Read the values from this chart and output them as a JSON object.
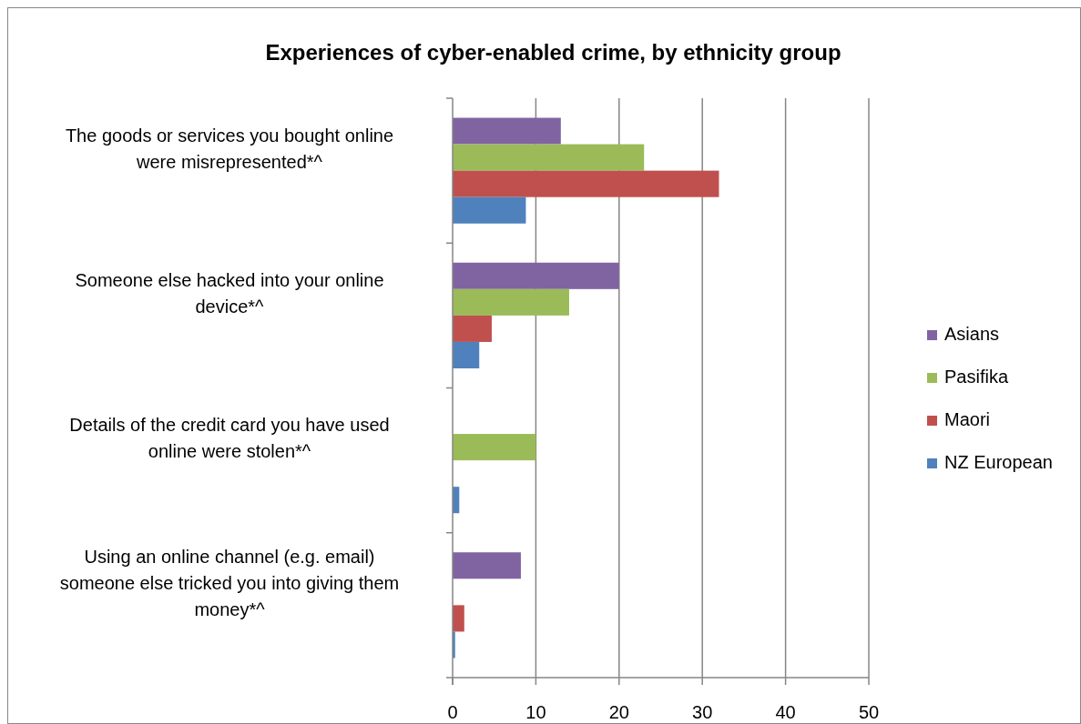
{
  "chart_data": {
    "type": "bar",
    "orientation": "horizontal",
    "title": "Experiences of cyber-enabled crime, by ethnicity group",
    "categories": [
      "The goods or services you bought online were misrepresented*^",
      "Someone else hacked into your online device*^",
      "Details of the credit card you have used online were stolen*^",
      "Using an online channel (e.g. email) someone else tricked you into giving them money*^"
    ],
    "series": [
      {
        "name": "Asians",
        "color": "#8064a2",
        "values": [
          13,
          20,
          0,
          8.2
        ]
      },
      {
        "name": "Pasifika",
        "color": "#9bbb59",
        "values": [
          23,
          14,
          10,
          0
        ]
      },
      {
        "name": "Maori",
        "color": "#c0504d",
        "values": [
          32,
          4.7,
          0,
          1.4
        ]
      },
      {
        "name": "NZ European",
        "color": "#4f81bd",
        "values": [
          8.8,
          3.2,
          0.8,
          0.3
        ]
      }
    ],
    "xlim": [
      0,
      50
    ],
    "xticks": [
      0,
      10,
      20,
      30,
      40,
      50
    ],
    "grid": "x",
    "legend": "right"
  }
}
